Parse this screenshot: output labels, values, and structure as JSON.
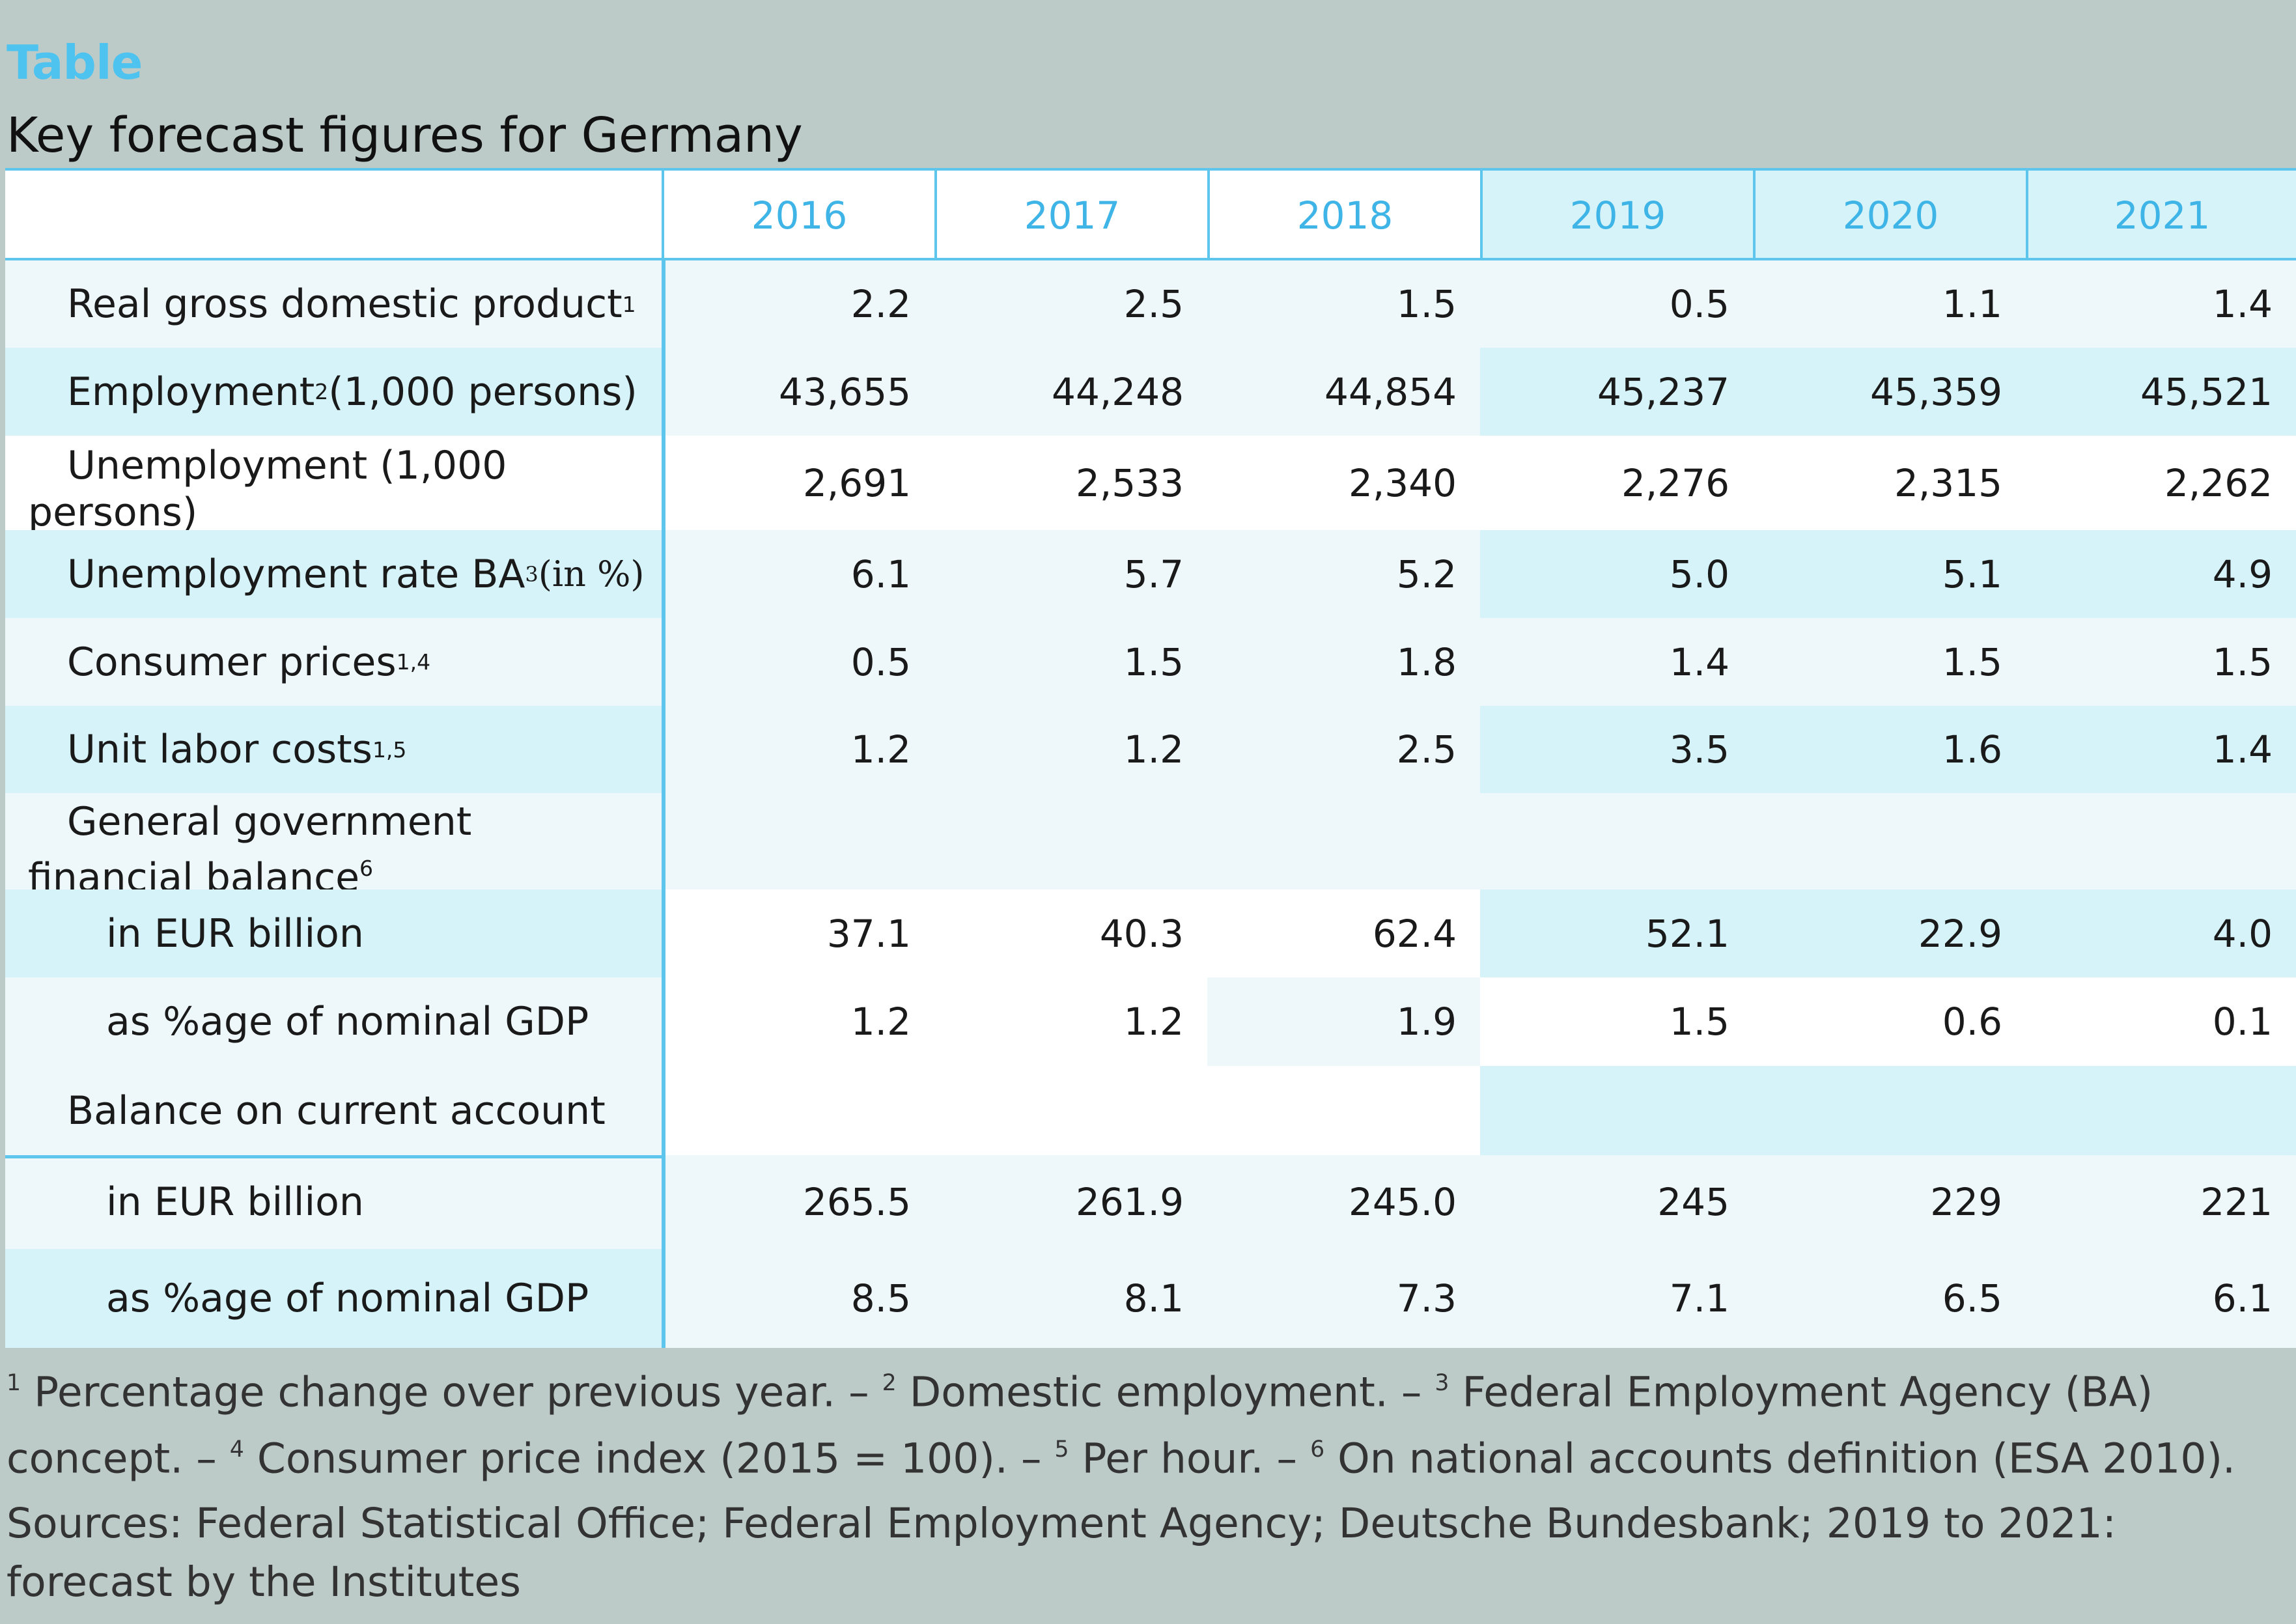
{
  "label": "Table",
  "title": "Key forecast figures for Germany",
  "years": [
    "2016",
    "2017",
    "2018",
    "2019",
    "2020",
    "2021"
  ],
  "rows": [
    {
      "label": "Real gross domestic product",
      "sup": "1",
      "values": [
        "2.2",
        "2.5",
        "1.5",
        "0.5",
        "1.1",
        "1.4"
      ]
    },
    {
      "label": "Employment",
      "sup": "2",
      "label_suffix": " (1,000 persons)",
      "values": [
        "43,655",
        "44,248",
        "44,854",
        "45,237",
        "45,359",
        "45,521"
      ]
    },
    {
      "label_line1": "Unemployment (1,000",
      "label_line2": "persons)",
      "values": [
        "2,691",
        "2,533",
        "2,340",
        "2,276",
        "2,315",
        "2,262"
      ]
    },
    {
      "label": "Unemployment rate BA",
      "sup": "3",
      "label_suffix": " (in %)",
      "values": [
        "6.1",
        "5.7",
        "5.2",
        "5.0",
        "5.1",
        "4.9"
      ]
    },
    {
      "label": "Consumer prices",
      "sup": "1,4",
      "values": [
        "0.5",
        "1.5",
        "1.8",
        "1.4",
        "1.5",
        "1.5"
      ]
    },
    {
      "label": "Unit labor costs",
      "sup": "1,5",
      "values": [
        "1.2",
        "1.2",
        "2.5",
        "3.5",
        "1.6",
        "1.4"
      ]
    },
    {
      "label_line1": "General government",
      "label_line2": "financial balance",
      "sup": "6",
      "values": []
    },
    {
      "label": "in EUR billion",
      "values": [
        "37.1",
        "40.3",
        "62.4",
        "52.1",
        "22.9",
        "4.0"
      ]
    },
    {
      "label": "as %age of nominal GDP",
      "values": [
        "1.2",
        "1.2",
        "1.9",
        "1.5",
        "0.6",
        "0.1"
      ]
    },
    {
      "label": "Balance on current account",
      "values": []
    },
    {
      "label": "in EUR billion",
      "values": [
        "265.5",
        "261.9",
        "245.0",
        "245",
        "229",
        "221"
      ]
    },
    {
      "label": "as %age of nominal GDP",
      "values": [
        "8.5",
        "8.1",
        "7.3",
        "7.1",
        "6.5",
        "6.1"
      ]
    }
  ],
  "footnotes": {
    "sup1": "1",
    "text1": " Percentage change over previous year. – ",
    "sup2": "2",
    "text2": " Domestic employment. – ",
    "sup3": "3",
    "text3": " Federal Employment Agency (BA) concept. – ",
    "sup4": "4",
    "text4": " Consumer price index (2015 = 100). – ",
    "sup5": "5",
    "text5": " Per hour. – ",
    "sup6": "6",
    "text6": " On national accounts definition (ESA 2010)."
  },
  "sources": "Sources: Federal Statistical Office; Federal Employment Agency; Deutsche Bundesbank; 2019 to 2021: forecast by the Institutes",
  "colors": {
    "background": "#bccbc7",
    "accent": "#5ec5ec",
    "label": "#4fc3f0",
    "row_tint_light": "#eef8fb",
    "row_tint_cyan": "#d5f3f9"
  }
}
